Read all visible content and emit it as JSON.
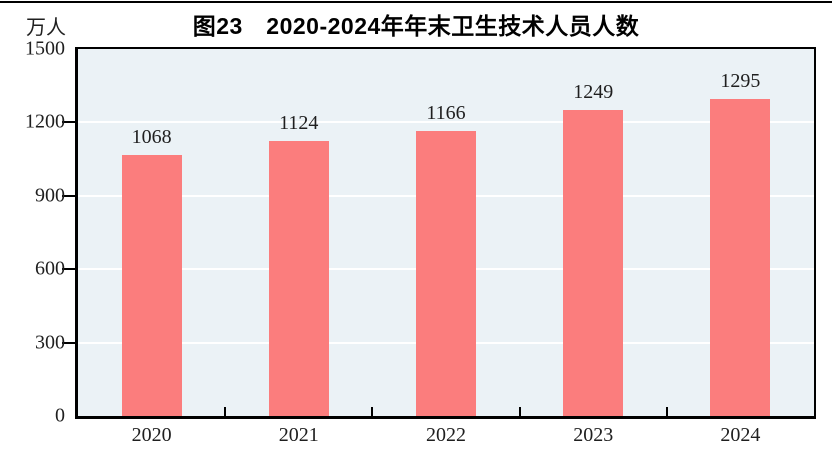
{
  "header": {
    "unit_label": "万人",
    "title": "图23　2020-2024年年末卫生技术人员人数"
  },
  "chart_data": {
    "type": "bar",
    "title": "图23　2020-2024年年末卫生技术人员人数",
    "ylabel": "万人",
    "xlabel": "",
    "categories": [
      "2020",
      "2021",
      "2022",
      "2023",
      "2024"
    ],
    "values": [
      1068,
      1124,
      1166,
      1249,
      1295
    ],
    "ylim": [
      0,
      1500
    ],
    "yticks": [
      0,
      300,
      600,
      900,
      1200,
      1500
    ],
    "grid": true,
    "legend": false,
    "colors": {
      "bar": "#fb7d7d",
      "plot_background": "#ebf2f6",
      "gridline": "#ffffff",
      "axis": "#000000",
      "text": "#1f1f1f"
    }
  }
}
